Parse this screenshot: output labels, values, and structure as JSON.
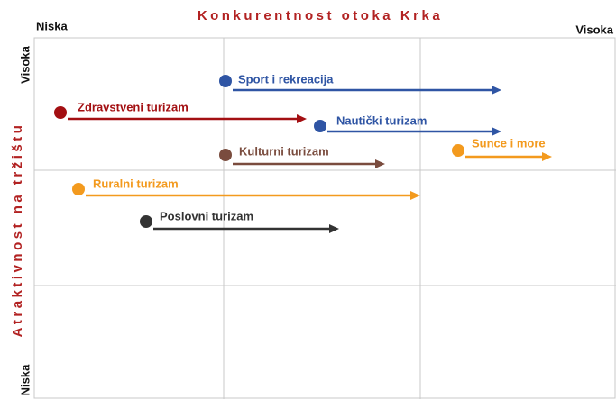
{
  "title": "Konkurentnost otoka Krka",
  "x_axis": {
    "low": "Niska",
    "high": "Visoka"
  },
  "y_axis": {
    "label": "Atraktivnost na tržištu",
    "high": "Visoka",
    "low": "Niska"
  },
  "items": [
    {
      "label": "Sport i rekreacija",
      "color": "#2f55a4"
    },
    {
      "label": "Zdravstveni turizam",
      "color": "#a30f12"
    },
    {
      "label": "Nautički turizam",
      "color": "#2f55a4"
    },
    {
      "label": "Kulturni turizam",
      "color": "#7a4c3e"
    },
    {
      "label": "Sunce i more",
      "color": "#f39a1e"
    },
    {
      "label": "Ruralni turizam",
      "color": "#f39a1e"
    },
    {
      "label": "Poslovni turizam",
      "color": "#333333"
    }
  ]
}
